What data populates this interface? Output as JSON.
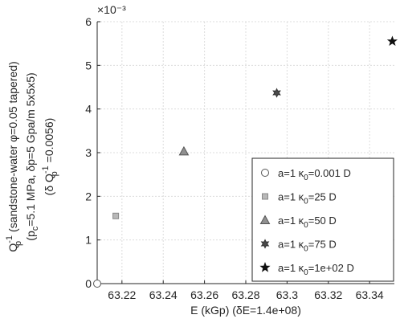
{
  "chart_data": {
    "type": "scatter",
    "xlabel": "E (kGp) (δE=1.4e+08)",
    "ylabel": {
      "line1": "(sandstone-water φ=0.05 tapered)",
      "line2": "(p_c=5.1 MPa, δp=5 Gpa/m 5x5x5)",
      "line3": "(δ Q_p^-1 =0.0056)",
      "symbol": "Q_p^-1"
    },
    "y_exponent_label": "×10⁻³",
    "xlim": [
      63.208,
      63.352
    ],
    "ylim": [
      0,
      6
    ],
    "x_ticks": [
      "63.22",
      "63.24",
      "63.26",
      "63.28",
      "63.3",
      "63.32",
      "63.34"
    ],
    "x_tick_values": [
      63.22,
      63.24,
      63.26,
      63.28,
      63.3,
      63.32,
      63.34
    ],
    "y_ticks": [
      "0",
      "1",
      "2",
      "3",
      "4",
      "5",
      "6"
    ],
    "y_tick_values": [
      0,
      1,
      2,
      3,
      4,
      5,
      6
    ],
    "grid": true,
    "legend_position": "bottom-right",
    "series": [
      {
        "name": "a=1 κ0=0.001 D",
        "legend_prefix": "a=1 κ",
        "legend_sub": "0",
        "legend_suffix": "=0.001 D",
        "marker": "circle",
        "x": 63.208,
        "y": 0.0,
        "color": "#ffffff",
        "stroke": "#555555"
      },
      {
        "name": "a=1 κ0=25 D",
        "legend_prefix": "a=1 κ",
        "legend_sub": "0",
        "legend_suffix": "=25 D",
        "marker": "square",
        "x": 63.217,
        "y": 1.55,
        "color": "#b8b8b8",
        "stroke": "#888888"
      },
      {
        "name": "a=1 κ0=50 D",
        "legend_prefix": "a=1 κ",
        "legend_sub": "0",
        "legend_suffix": "=50 D",
        "marker": "triangle",
        "x": 63.25,
        "y": 3.03,
        "color": "#909090",
        "stroke": "#555555"
      },
      {
        "name": "a=1 κ0=75 D",
        "legend_prefix": "a=1 κ",
        "legend_sub": "0",
        "legend_suffix": "=75 D",
        "marker": "hexagram",
        "x": 63.295,
        "y": 4.37,
        "color": "#4a4a4a",
        "stroke": "#333333"
      },
      {
        "name": "a=1 κ0=1e+02 D",
        "legend_prefix": "a=1 κ",
        "legend_sub": "0",
        "legend_suffix": "=1e+02 D",
        "marker": "star",
        "x": 63.351,
        "y": 5.55,
        "color": "#111111",
        "stroke": "#111111"
      }
    ]
  }
}
